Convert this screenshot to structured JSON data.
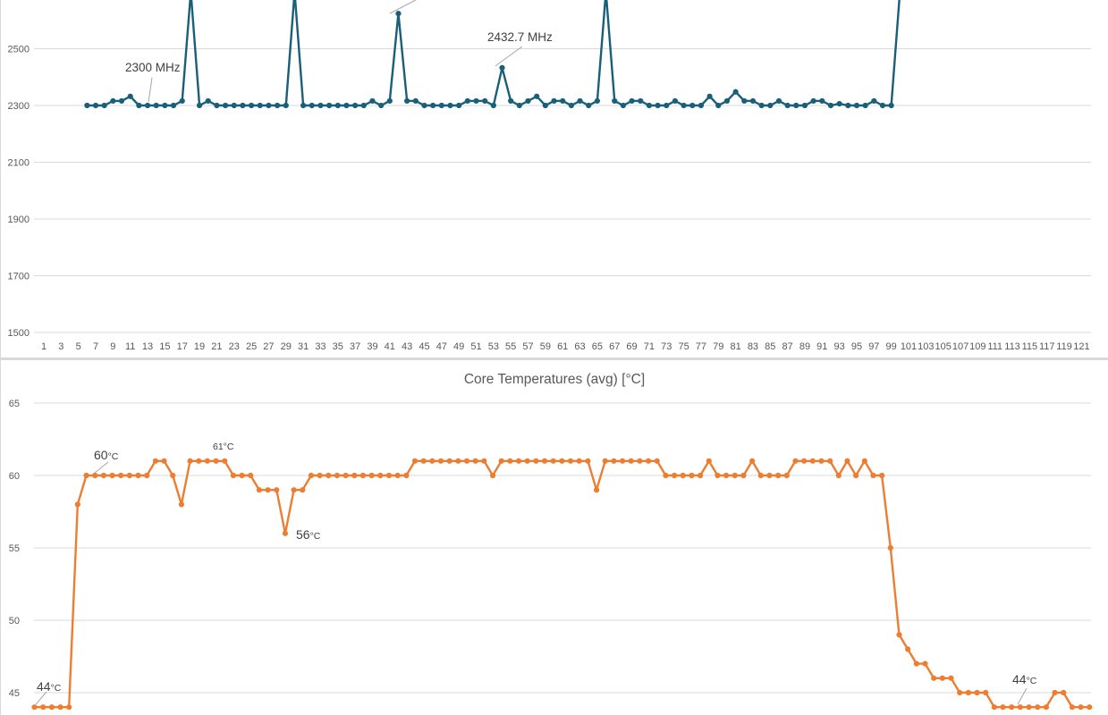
{
  "chart_data": [
    {
      "type": "line",
      "title": "",
      "xlabel": "",
      "ylabel": "",
      "ylim": [
        1500,
        2700
      ],
      "yticks": [
        1500,
        1700,
        1900,
        2100,
        2300,
        2500
      ],
      "x_tick_labels": [
        "1",
        "3",
        "5",
        "7",
        "9",
        "11",
        "13",
        "15",
        "17",
        "19",
        "21",
        "23",
        "25",
        "27",
        "29",
        "31",
        "33",
        "35",
        "37",
        "39",
        "41",
        "43",
        "45",
        "47",
        "49",
        "51",
        "53",
        "55",
        "57",
        "59",
        "61",
        "63",
        "65",
        "67",
        "69",
        "71",
        "73",
        "75",
        "77",
        "79",
        "81",
        "83",
        "85",
        "87",
        "89",
        "91",
        "93",
        "95",
        "97",
        "99",
        "101",
        "103",
        "105",
        "107",
        "109",
        "111",
        "113",
        "115",
        "117",
        "119",
        "121"
      ],
      "grid": true,
      "line_color": "#1a5f7a",
      "series": [
        {
          "x_start": 6,
          "values": [
            2300,
            2300,
            2300,
            2316,
            2316,
            2332,
            2300,
            2300,
            2300,
            2300,
            2300,
            2316,
            2700,
            2300,
            2316,
            2300,
            2300,
            2300,
            2300,
            2300,
            2300,
            2300,
            2300,
            2300,
            2700,
            2300,
            2300,
            2300,
            2300,
            2300,
            2300,
            2300,
            2300,
            2316,
            2300,
            2316,
            2624,
            2316,
            2316,
            2300,
            2300,
            2300,
            2300,
            2300,
            2316,
            2316,
            2316,
            2300,
            2432.7,
            2316,
            2300,
            2316,
            2332,
            2300,
            2316,
            2316,
            2300,
            2316,
            2300,
            2316,
            2700,
            2316,
            2300,
            2316,
            2316,
            2300,
            2300,
            2300,
            2316,
            2300,
            2300,
            2300,
            2332,
            2300,
            2316,
            2348,
            2316,
            2316,
            2300,
            2300,
            2316,
            2300,
            2300,
            2300,
            2316,
            2316,
            2300,
            2306,
            2300,
            2300,
            2300,
            2316,
            2300,
            2300,
            2700
          ]
        }
      ],
      "annotations": [
        {
          "text": "2300 MHz",
          "x": 13,
          "y": 2300
        },
        {
          "text": "2432.7 MHz",
          "x": 53,
          "y": 2432.7
        }
      ]
    },
    {
      "type": "line",
      "title": "Core Temperatures (avg) [°C]",
      "xlabel": "",
      "ylabel": "",
      "ylim": [
        44,
        65
      ],
      "yticks": [
        45,
        50,
        55,
        60,
        65
      ],
      "grid": true,
      "line_color": "#ed7d31",
      "series": [
        {
          "x_start": 1,
          "values": [
            44,
            44,
            44,
            44,
            44,
            58,
            60,
            60,
            60,
            60,
            60,
            60,
            60,
            60,
            61,
            61,
            60,
            58,
            61,
            61,
            61,
            61,
            61,
            60,
            60,
            60,
            59,
            59,
            59,
            56,
            59,
            59,
            60,
            60,
            60,
            60,
            60,
            60,
            60,
            60,
            60,
            60,
            60,
            60,
            61,
            61,
            61,
            61,
            61,
            61,
            61,
            61,
            61,
            60,
            61,
            61,
            61,
            61,
            61,
            61,
            61,
            61,
            61,
            61,
            61,
            59,
            61,
            61,
            61,
            61,
            61,
            61,
            61,
            60,
            60,
            60,
            60,
            60,
            61,
            60,
            60,
            60,
            60,
            61,
            60,
            60,
            60,
            60,
            61,
            61,
            61,
            61,
            61,
            60,
            61,
            60,
            61,
            60,
            60,
            55,
            49,
            48,
            47,
            47,
            46,
            46,
            46,
            45,
            45,
            45,
            45,
            44,
            44,
            44,
            44,
            44,
            44,
            44,
            45,
            45,
            44,
            44,
            44
          ]
        }
      ],
      "annotations": [
        {
          "text": "44",
          "unit": "°C",
          "x": 1,
          "y": 44
        },
        {
          "text": "60",
          "unit": "°C",
          "x": 7,
          "y": 60
        },
        {
          "text": "61°C",
          "x": 22,
          "y": 61
        },
        {
          "text": "56",
          "unit": "°C",
          "x": 30,
          "y": 56
        },
        {
          "text": "44",
          "unit": "°C",
          "x": 114,
          "y": 44
        }
      ]
    }
  ]
}
